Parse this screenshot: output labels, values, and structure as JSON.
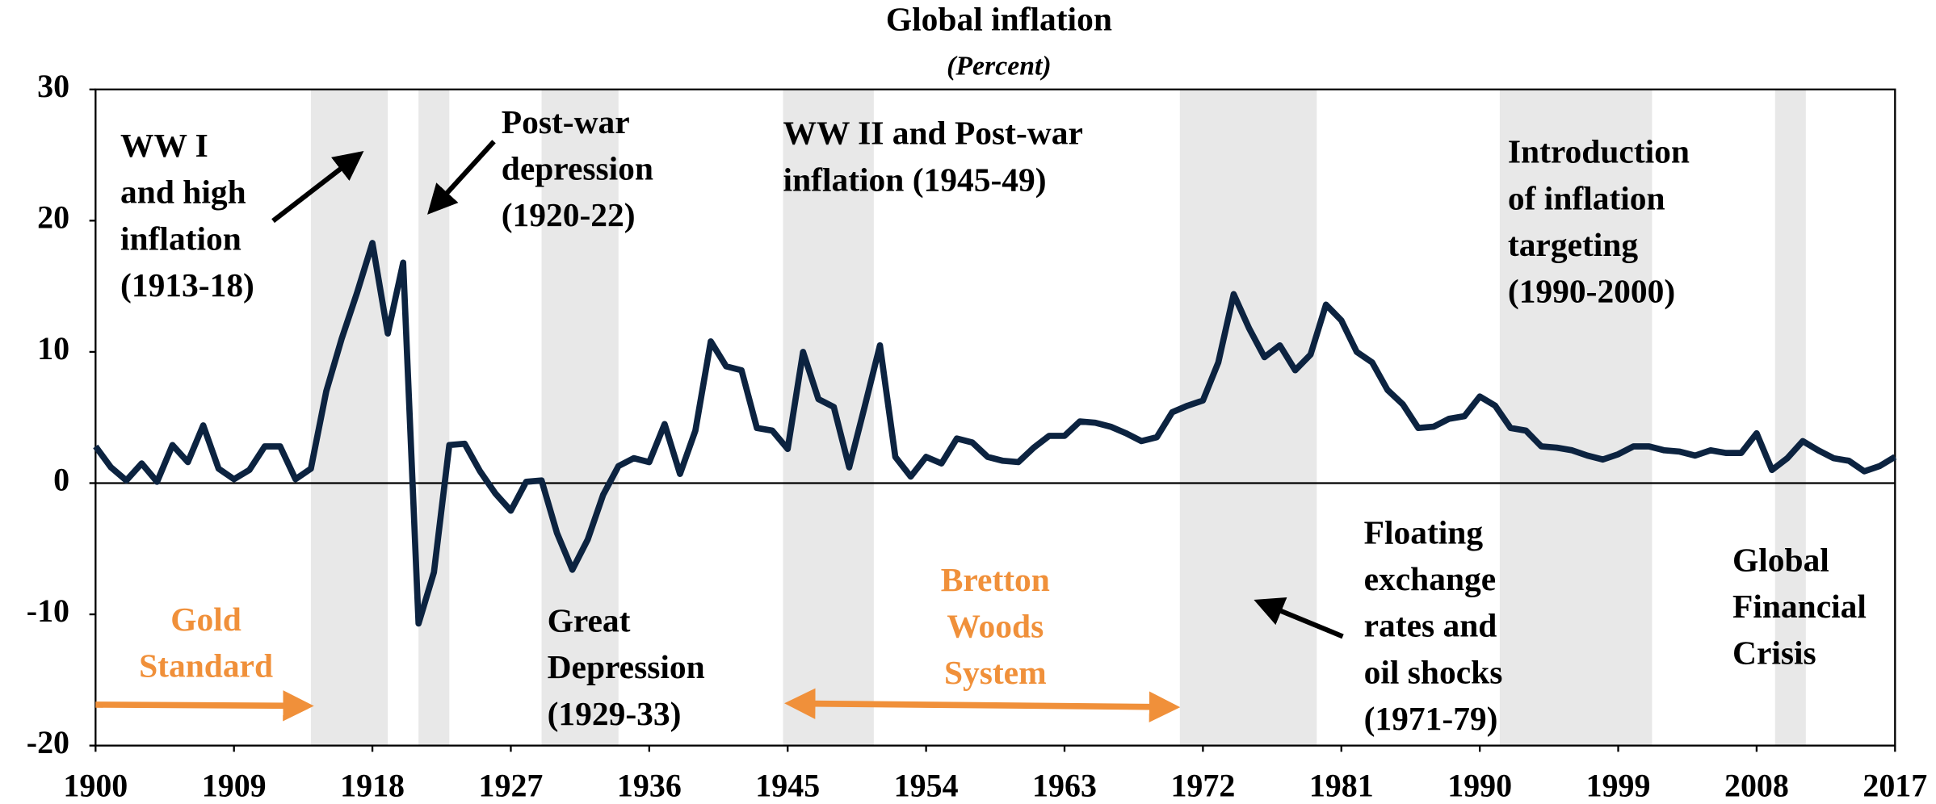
{
  "chart_data": {
    "type": "line",
    "title": "Global inflation",
    "subtitle": "(Percent)",
    "x": [
      1900,
      1901,
      1902,
      1903,
      1904,
      1905,
      1906,
      1907,
      1908,
      1909,
      1910,
      1911,
      1912,
      1913,
      1914,
      1915,
      1916,
      1917,
      1918,
      1919,
      1920,
      1921,
      1922,
      1923,
      1924,
      1925,
      1926,
      1927,
      1928,
      1929,
      1930,
      1931,
      1932,
      1933,
      1934,
      1935,
      1936,
      1937,
      1938,
      1939,
      1940,
      1941,
      1942,
      1943,
      1944,
      1945,
      1946,
      1947,
      1948,
      1949,
      1950,
      1951,
      1952,
      1953,
      1954,
      1955,
      1956,
      1957,
      1958,
      1959,
      1960,
      1961,
      1962,
      1963,
      1964,
      1965,
      1966,
      1967,
      1968,
      1969,
      1970,
      1971,
      1972,
      1973,
      1974,
      1975,
      1976,
      1977,
      1978,
      1979,
      1980,
      1981,
      1982,
      1983,
      1984,
      1985,
      1986,
      1987,
      1988,
      1989,
      1990,
      1991,
      1992,
      1993,
      1994,
      1995,
      1996,
      1997,
      1998,
      1999,
      2000,
      2001,
      2002,
      2003,
      2004,
      2005,
      2006,
      2007,
      2008,
      2009,
      2010,
      2011,
      2012,
      2013,
      2014,
      2015,
      2016,
      2017
    ],
    "series": [
      {
        "name": "Global inflation",
        "color": "#0c2340",
        "values": [
          2.8,
          1.2,
          0.2,
          1.5,
          0.1,
          2.9,
          1.6,
          4.4,
          1.1,
          0.3,
          1.0,
          2.8,
          2.8,
          0.3,
          1.1,
          7.0,
          11.0,
          14.5,
          18.3,
          11.4,
          16.8,
          -10.7,
          -6.8,
          2.9,
          3.0,
          0.9,
          -0.8,
          -2.1,
          0.1,
          0.2,
          -3.8,
          -6.6,
          -4.3,
          -0.9,
          1.3,
          1.9,
          1.6,
          4.5,
          0.7,
          4.0,
          10.8,
          8.9,
          8.6,
          4.2,
          4.0,
          2.6,
          10.0,
          6.4,
          5.8,
          1.2,
          5.8,
          10.5,
          2.0,
          0.5,
          2.0,
          1.5,
          3.4,
          3.1,
          2.0,
          1.7,
          1.6,
          2.7,
          3.6,
          3.6,
          4.7,
          4.6,
          4.3,
          3.8,
          3.2,
          3.5,
          5.4,
          5.9,
          6.3,
          9.2,
          14.4,
          11.8,
          9.6,
          10.5,
          8.6,
          9.8,
          13.6,
          12.4,
          10.0,
          9.2,
          7.1,
          6.0,
          4.2,
          4.3,
          4.9,
          5.1,
          6.6,
          5.9,
          4.2,
          4.0,
          2.8,
          2.7,
          2.5,
          2.1,
          1.8,
          2.2,
          2.8,
          2.8,
          2.5,
          2.4,
          2.1,
          2.5,
          2.3,
          2.3,
          3.8,
          1.0,
          1.9,
          3.2,
          2.5,
          1.9,
          1.7,
          0.9,
          1.3,
          2.0
        ]
      }
    ],
    "xlim": [
      1900,
      2017
    ],
    "xticks": [
      1900,
      1909,
      1918,
      1927,
      1936,
      1945,
      1954,
      1963,
      1972,
      1981,
      1990,
      1999,
      2008,
      2017
    ],
    "ylim": [
      -20,
      30
    ],
    "yticks": [
      30,
      20,
      10,
      0,
      -10,
      -20
    ],
    "shaded_periods": [
      [
        1914,
        1919
      ],
      [
        1921,
        1923
      ],
      [
        1929,
        1934
      ],
      [
        1944.7,
        1950.6
      ],
      [
        1970.5,
        1979.4
      ],
      [
        1991.3,
        2001.2
      ],
      [
        2009.2,
        2011.2
      ]
    ],
    "shade_color": "#e8e8e8",
    "annotations": [
      [
        "WW I",
        "and high",
        "inflation",
        "(1913-18)"
      ],
      [
        "Post-war",
        "depression",
        "(1920-22)"
      ],
      [
        "WW II and Post-war",
        "inflation (1945-49)"
      ],
      [
        "Introduction",
        "of inflation",
        "targeting",
        "(1990-2000)"
      ],
      [
        "Floating",
        "exchange",
        "rates and",
        "oil shocks",
        "(1971-79)"
      ],
      [
        "Great",
        "Depression",
        "(1929-33)"
      ],
      [
        "Global",
        "Financial",
        "Crisis"
      ]
    ],
    "regime_labels": [
      [
        "Gold",
        "Standard"
      ],
      [
        "Bretton",
        "Woods",
        "System"
      ]
    ],
    "regime_color": "#f0903a"
  }
}
